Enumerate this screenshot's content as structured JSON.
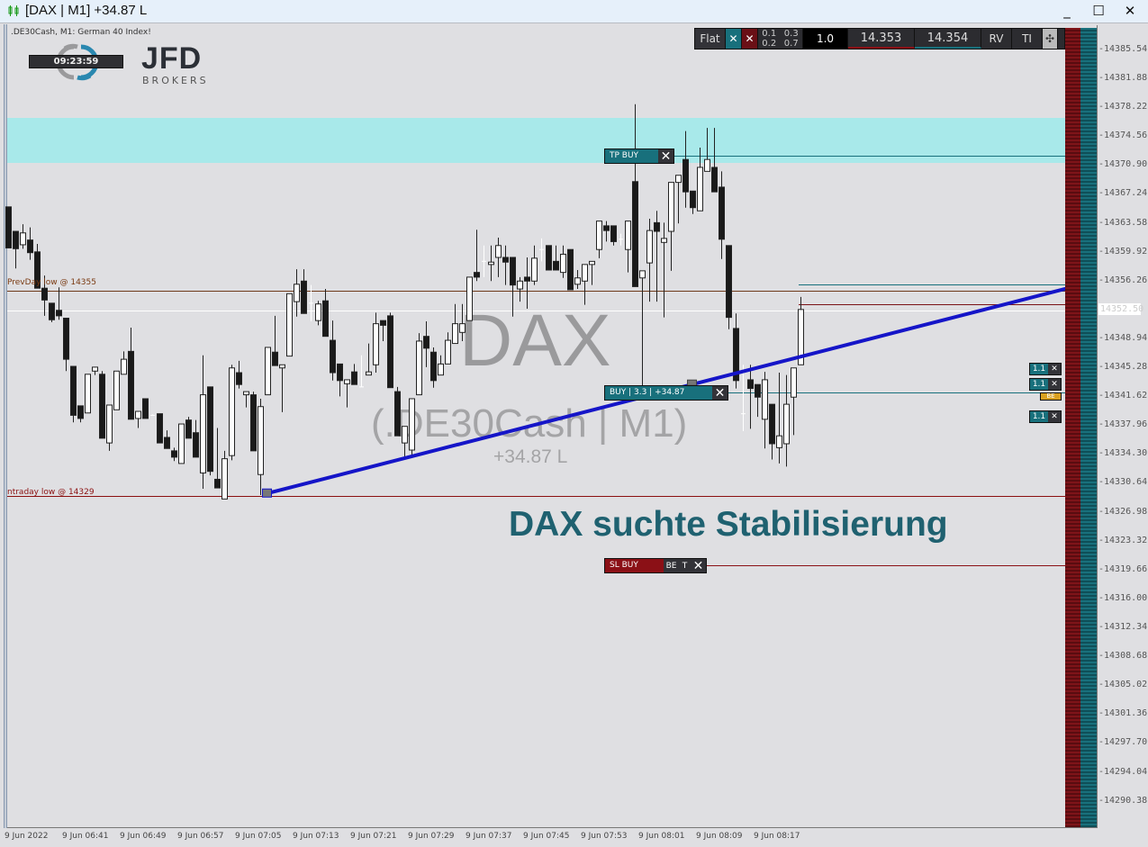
{
  "window": {
    "title": "[DAX | M1] +34.87 L",
    "minimize": "_",
    "maximize": "☐",
    "close": "✕"
  },
  "chart_header": {
    "symbol_info": ".DE30Cash, M1:  German 40 Index!",
    "clock": "09:23:59",
    "logo_main": "JFD",
    "logo_sub": "BROKERS"
  },
  "toolbar": {
    "mode": "Flat",
    "close_buy": "✕",
    "close_sell": "✕",
    "lots": [
      "0.1",
      "0.3",
      "0.2",
      "0.7"
    ],
    "volume": "1.0",
    "bid": "14.353",
    "ask": "14.354",
    "rv": "RV",
    "ti": "TI",
    "crosshair": "✣"
  },
  "watermark": {
    "symbol": "DAX",
    "sub": "(.DE30Cash | M1)",
    "pl": "+34.87 L"
  },
  "headline": "DAX suchte Stabilisierung",
  "colors": {
    "background": "#dfdfe2",
    "bull": "#ffffff",
    "bear": "#1a1a1a",
    "tp_zone": "#a8e9ea",
    "trendline": "#1515c8",
    "teal": "#18707c",
    "sl": "#8b1016",
    "headline": "#1f6170"
  },
  "levels": {
    "prevday_low": {
      "label": "PrevDay low @ 14355",
      "price": 14355
    },
    "intraday_low": {
      "label": "ntraday low @ 14329",
      "price": 14329
    },
    "current_price": {
      "label": "14352.50",
      "price": 14352.5
    },
    "tp": {
      "label": "TP BUY",
      "price": 14372.1
    },
    "buy": {
      "label": "BUY | 3.3 | +34.87",
      "price": 14342.1
    },
    "sl": {
      "label": "SL BUY",
      "be": "BE",
      "t": "T",
      "price": 14320.2
    },
    "tp_zone": [
      14371.2,
      14376.9
    ]
  },
  "order_tags": [
    {
      "label": "1.1",
      "close": "✕"
    },
    {
      "label": "1.1",
      "close": "✕"
    },
    {
      "label": "1.1",
      "close": "✕"
    }
  ],
  "be_tag": "BE",
  "chart_data": {
    "type": "candlestick",
    "price_axis": [
      "14385.54",
      "14381.88",
      "14378.22",
      "14374.56",
      "14370.90",
      "14367.24",
      "14363.58",
      "14359.92",
      "14356.26",
      "14348.94",
      "14345.28",
      "14341.62",
      "14337.96",
      "14334.30",
      "14330.64",
      "14326.98",
      "14323.32",
      "14319.66",
      "14316.00",
      "14312.34",
      "14308.68",
      "14305.02",
      "14301.36",
      "14297.70",
      "14294.04",
      "14290.38"
    ],
    "time_axis": [
      "9 Jun 2022",
      "9 Jun 06:41",
      "9 Jun 06:49",
      "9 Jun 06:57",
      "9 Jun 07:05",
      "9 Jun 07:13",
      "9 Jun 07:21",
      "9 Jun 07:29",
      "9 Jun 07:37",
      "9 Jun 07:45",
      "9 Jun 07:53",
      "9 Jun 08:01",
      "9 Jun 08:09",
      "9 Jun 08:17"
    ],
    "trendline": [
      {
        "time": "07:09",
        "price": 14329.3
      },
      {
        "time": "08:08",
        "price": 14343.1
      }
    ],
    "candles_ohlc": [
      [
        "06:33",
        14365.6,
        14365.6,
        14360.4,
        14360.4
      ],
      [
        "06:34",
        14362.5,
        14362.5,
        14357.8,
        14360.3
      ],
      [
        "06:35",
        14360.8,
        14363.4,
        14360.3,
        14362.3
      ],
      [
        "06:36",
        14361.4,
        14363.0,
        14358.9,
        14359.8
      ],
      [
        "06:37",
        14359.9,
        14360.9,
        14355.3,
        14355.3
      ],
      [
        "06:38",
        14355.3,
        14356.9,
        14351.8,
        14353.8
      ],
      [
        "06:39",
        14353.4,
        14353.4,
        14351.0,
        14351.3
      ],
      [
        "06:40",
        14352.5,
        14355.4,
        14351.3,
        14351.8
      ],
      [
        "06:41",
        14351.5,
        14351.5,
        14344.8,
        14346.3
      ],
      [
        "06:42",
        14345.4,
        14345.4,
        14338.3,
        14339.2
      ],
      [
        "06:43",
        14340.4,
        14340.4,
        14338.3,
        14338.8
      ],
      [
        "06:44",
        14339.5,
        14344.4,
        14339.5,
        14344.4
      ],
      [
        "06:45",
        14344.8,
        14345.3,
        14344.3,
        14345.3
      ],
      [
        "06:46",
        14344.4,
        14344.8,
        14336.3,
        14336.3
      ],
      [
        "06:47",
        14335.7,
        14340.5,
        14334.7,
        14340.5
      ],
      [
        "06:48",
        14339.9,
        14344.8,
        14339.9,
        14344.8
      ],
      [
        "06:49",
        14344.4,
        14347.3,
        14344.4,
        14346.3
      ],
      [
        "06:50",
        14347.3,
        14350.3,
        14338.7,
        14338.7
      ],
      [
        "06:51",
        14338.8,
        14339.7,
        14337.6,
        14339.7
      ],
      [
        "06:52",
        14341.3,
        14341.3,
        14338.8,
        14338.8
      ],
      [
        "06:53",
        14339.2,
        14339.3,
        14339.2,
        14339.2
      ],
      [
        "06:54",
        14339.4,
        14339.4,
        14335.7,
        14335.7
      ],
      [
        "06:55",
        14336.4,
        14337.3,
        14335.0,
        14335.0
      ],
      [
        "06:56",
        14334.7,
        14335.1,
        14333.4,
        14333.9
      ],
      [
        "06:57",
        14333.1,
        14338.1,
        14333.1,
        14338.1
      ],
      [
        "06:58",
        14338.6,
        14339.0,
        14336.3,
        14336.3
      ],
      [
        "06:59",
        14337.0,
        14338.6,
        14333.9,
        14333.9
      ],
      [
        "07:00",
        14331.9,
        14346.8,
        14329.9,
        14341.8
      ],
      [
        "07:01",
        14342.8,
        14342.8,
        14331.6,
        14332.1
      ],
      [
        "07:02",
        14331.1,
        14337.6,
        14330.0,
        14330.0
      ],
      [
        "07:03",
        14328.6,
        14334.7,
        14328.6,
        14333.7
      ],
      [
        "07:04",
        14334.1,
        14345.6,
        14333.5,
        14345.2
      ],
      [
        "07:05",
        14344.6,
        14346.1,
        14342.6,
        14343.1
      ],
      [
        "07:06",
        14341.8,
        14342.2,
        14340.2,
        14342.2
      ],
      [
        "07:07",
        14341.8,
        14342.2,
        14334.7,
        14334.7
      ],
      [
        "07:08",
        14331.7,
        14341.3,
        14329.1,
        14340.3
      ],
      [
        "07:09",
        14341.8,
        14347.8,
        14341.8,
        14347.8
      ],
      [
        "07:10",
        14347.2,
        14351.8,
        14345.5,
        14345.5
      ],
      [
        "07:11",
        14345.2,
        14345.6,
        14339.6,
        14345.6
      ],
      [
        "07:12",
        14346.7,
        14354.6,
        14346.7,
        14354.6
      ],
      [
        "07:13",
        14353.6,
        14357.7,
        14351.7,
        14355.8
      ],
      [
        "07:14",
        14356.2,
        14357.7,
        14352.1,
        14352.1
      ],
      [
        "07:15",
        14353.4,
        14355.7,
        14351.1,
        14353.4
      ],
      [
        "07:16",
        14351.2,
        14353.7,
        14350.6,
        14353.3
      ],
      [
        "07:17",
        14353.7,
        14355.2,
        14349.2,
        14349.2
      ],
      [
        "07:18",
        14348.7,
        14351.2,
        14343.6,
        14344.6
      ],
      [
        "07:19",
        14345.7,
        14345.7,
        14341.6,
        14343.6
      ],
      [
        "07:20",
        14343.2,
        14343.7,
        14340.2,
        14343.7
      ],
      [
        "07:21",
        14344.7,
        14345.7,
        14343.1,
        14343.1
      ],
      [
        "07:22",
        14342.8,
        14346.8,
        14342.8,
        14342.8
      ],
      [
        "07:23",
        14344.3,
        14348.3,
        14344.3,
        14344.7
      ],
      [
        "07:24",
        14345.6,
        14352.2,
        14344.6,
        14350.8
      ],
      [
        "07:25",
        14351.2,
        14351.2,
        14348.6,
        14350.6
      ],
      [
        "07:26",
        14351.8,
        14352.2,
        14342.7,
        14342.7
      ],
      [
        "07:27",
        14342.2,
        14342.8,
        14336.6,
        14336.6
      ],
      [
        "07:28",
        14335.7,
        14337.8,
        14333.9,
        14337.8
      ],
      [
        "07:29",
        14334.8,
        14341.3,
        14334.0,
        14341.3
      ],
      [
        "07:30",
        14341.8,
        14349.6,
        14341.8,
        14348.6
      ],
      [
        "07:31",
        14349.2,
        14351.1,
        14345.3,
        14347.7
      ],
      [
        "07:32",
        14347.2,
        14347.8,
        14342.7,
        14343.6
      ],
      [
        "07:33",
        14344.3,
        14346.8,
        14344.3,
        14345.7
      ],
      [
        "07:34",
        14345.7,
        14349.7,
        14345.7,
        14348.7
      ],
      [
        "07:35",
        14348.3,
        14353.3,
        14348.3,
        14350.8
      ],
      [
        "07:36",
        14349.7,
        14353.3,
        14348.6,
        14350.8
      ],
      [
        "07:37",
        14351.2,
        14356.7,
        14351.2,
        14356.7
      ],
      [
        "07:38",
        14357.3,
        14362.7,
        14356.2,
        14356.7
      ],
      [
        "07:39",
        14358.7,
        14360.7,
        14356.7,
        14358.7
      ],
      [
        "07:40",
        14358.3,
        14360.7,
        14356.2,
        14358.6
      ],
      [
        "07:41",
        14359.2,
        14361.7,
        14356.7,
        14360.7
      ],
      [
        "07:42",
        14359.2,
        14360.7,
        14355.7,
        14358.6
      ],
      [
        "07:43",
        14359.2,
        14359.2,
        14351.7,
        14355.7
      ],
      [
        "07:44",
        14355.2,
        14356.7,
        14353.6,
        14356.2
      ],
      [
        "07:45",
        14356.7,
        14359.2,
        14352.7,
        14356.2
      ],
      [
        "07:46",
        14356.2,
        14360.7,
        14355.7,
        14359.1
      ],
      [
        "07:47",
        14360.2,
        14361.6,
        14358.7,
        14360.2
      ],
      [
        "07:48",
        14360.7,
        14360.7,
        14357.6,
        14357.6
      ],
      [
        "07:49",
        14358.7,
        14360.7,
        14357.6,
        14357.6
      ],
      [
        "07:50",
        14357.3,
        14360.7,
        14356.6,
        14359.6
      ],
      [
        "07:51",
        14360.2,
        14360.2,
        14355.1,
        14355.1
      ],
      [
        "07:52",
        14355.8,
        14357.6,
        14355.2,
        14356.6
      ],
      [
        "07:53",
        14356.2,
        14358.3,
        14353.2,
        14358.3
      ],
      [
        "07:54",
        14358.3,
        14358.7,
        14355.7,
        14358.7
      ],
      [
        "07:55",
        14360.2,
        14363.8,
        14359.1,
        14363.8
      ],
      [
        "07:56",
        14363.2,
        14363.8,
        14361.2,
        14362.6
      ],
      [
        "07:57",
        14363.2,
        14363.2,
        14360.7,
        14361.2
      ],
      [
        "07:58",
        14361.5,
        14362.2,
        14360.7,
        14361.5
      ],
      [
        "07:59",
        14360.2,
        14363.8,
        14357.3,
        14363.8
      ],
      [
        "08:00",
        14368.8,
        14378.6,
        14355.5,
        14355.5
      ],
      [
        "08:01",
        14356.6,
        14357.5,
        14342.8,
        14357.5
      ],
      [
        "08:02",
        14358.5,
        14364.1,
        14353.6,
        14362.6
      ],
      [
        "08:03",
        14363.6,
        14365.1,
        14353.6,
        14362.5
      ],
      [
        "08:04",
        14361.1,
        14363.6,
        14351.6,
        14361.6
      ],
      [
        "08:05",
        14362.5,
        14368.7,
        14357.5,
        14368.7
      ],
      [
        "08:06",
        14368.7,
        14369.6,
        14363.5,
        14369.6
      ],
      [
        "08:07",
        14371.6,
        14375.2,
        14365.5,
        14367.5
      ],
      [
        "08:08",
        14367.6,
        14367.6,
        14364.7,
        14365.5
      ],
      [
        "08:09",
        14365.1,
        14373.1,
        14365.1,
        14370.6
      ],
      [
        "08:10",
        14370.1,
        14375.6,
        14370.1,
        14371.6
      ],
      [
        "08:11",
        14370.6,
        14375.6,
        14367.5,
        14367.5
      ],
      [
        "08:12",
        14368.1,
        14370.1,
        14359.0,
        14361.5
      ],
      [
        "08:13",
        14360.7,
        14360.7,
        14350.1,
        14351.6
      ],
      [
        "08:14",
        14350.2,
        14352.1,
        14342.6,
        14343.6
      ],
      [
        "08:15",
        14339.4,
        14345.6,
        14337.2,
        14339.4
      ],
      [
        "08:16",
        14343.7,
        14345.6,
        14337.5,
        14342.6
      ],
      [
        "08:17",
        14343.1,
        14343.1,
        14339.0,
        14341.5
      ],
      [
        "08:18",
        14338.7,
        14344.7,
        14335.0,
        14343.7
      ],
      [
        "08:19",
        14340.6,
        14340.6,
        14333.6,
        14335.6
      ],
      [
        "08:20",
        14335.1,
        14344.6,
        14333.1,
        14336.6
      ],
      [
        "08:21",
        14335.6,
        14344.3,
        14332.7,
        14340.6
      ],
      [
        "08:22",
        14341.5,
        14345.2,
        14336.7,
        14345.2
      ],
      [
        "08:23",
        14345.6,
        14354.2,
        14345.6,
        14352.6
      ]
    ]
  }
}
